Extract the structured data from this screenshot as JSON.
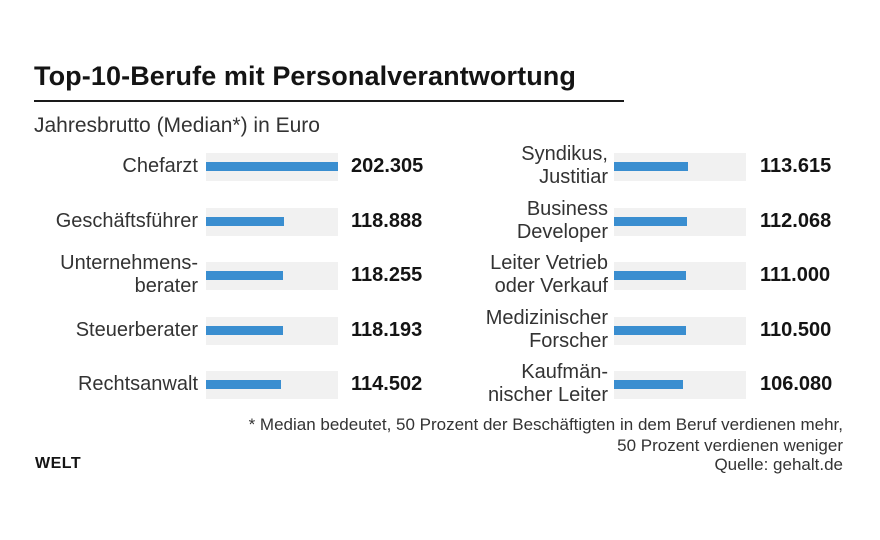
{
  "chart_data": {
    "type": "bar",
    "orientation": "horizontal",
    "title": "Top-10-Berufe mit Personalverantwortung",
    "subtitle": "Jahresbrutto (Median*) in Euro",
    "xlim": [
      0,
      202305
    ],
    "grid": false,
    "columns": [
      {
        "categories": [
          [
            "Chefarzt"
          ],
          [
            "Geschäftsführer"
          ],
          [
            "Unternehmens-",
            "berater"
          ],
          [
            "Steuerberater"
          ],
          [
            "Rechtsanwalt"
          ]
        ],
        "values": [
          202305,
          118888,
          118255,
          118193,
          114502
        ],
        "value_labels": [
          "202.305",
          "118.888",
          "118.255",
          "118.193",
          "114.502"
        ]
      },
      {
        "categories": [
          [
            "Syndikus,",
            "Justitiar"
          ],
          [
            "Business",
            "Developer"
          ],
          [
            "Leiter Vetrieb",
            "oder Verkauf"
          ],
          [
            "Medizinischer",
            "Forscher"
          ],
          [
            "Kaufmän-",
            "nischer Leiter"
          ]
        ],
        "values": [
          113615,
          112068,
          111000,
          110500,
          106080
        ],
        "value_labels": [
          "113.615",
          "112.068",
          "111.000",
          "110.500",
          "106.080"
        ]
      }
    ],
    "bar_color": "#3a8ed0",
    "track_color": "#f1f1f1"
  },
  "footnote": [
    "* Median bedeutet, 50 Prozent der Beschäftigten in dem Beruf verdienen mehr,",
    "50 Prozent verdienen weniger"
  ],
  "source": "Quelle: gehalt.de",
  "logo": "WELT"
}
